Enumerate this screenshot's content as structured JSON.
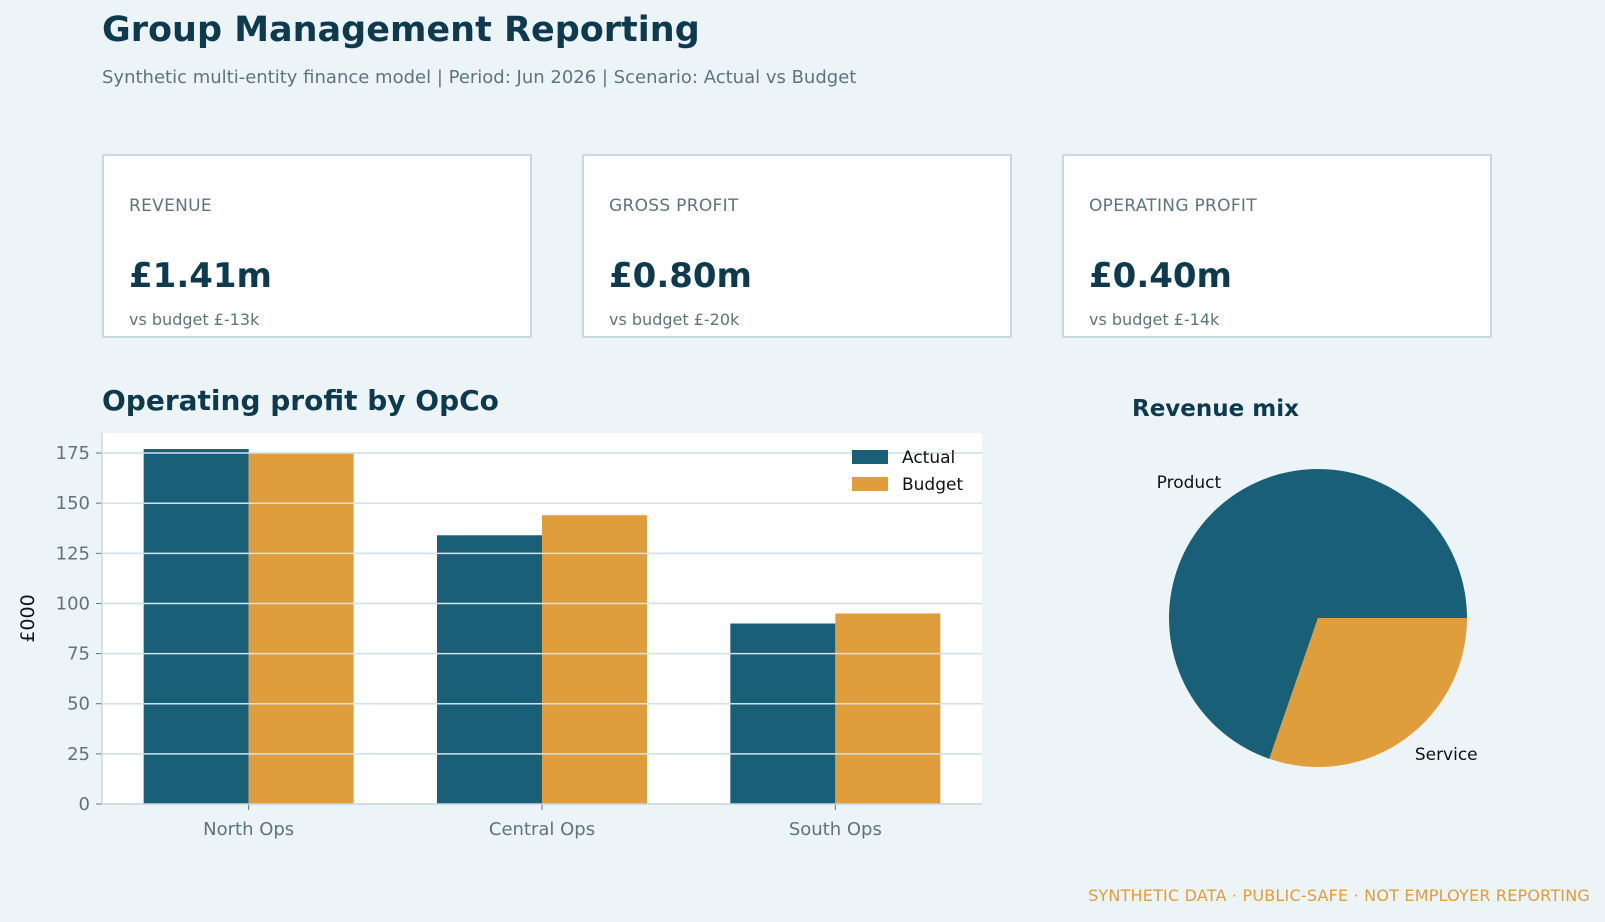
{
  "header": {
    "title": "Group Management Reporting",
    "subtitle": "Synthetic multi-entity finance model  |  Period: Jun 2026  |  Scenario: Actual vs Budget"
  },
  "kpis": [
    {
      "label": "REVENUE",
      "value": "£1.41m",
      "delta": "vs budget £-13k"
    },
    {
      "label": "GROSS PROFIT",
      "value": "£0.80m",
      "delta": "vs budget £-20k"
    },
    {
      "label": "OPERATING PROFIT",
      "value": "£0.40m",
      "delta": "vs budget £-14k"
    }
  ],
  "footer": "SYNTHETIC DATA · PUBLIC-SAFE · NOT EMPLOYER REPORTING",
  "colors": {
    "actual": "#1a5f78",
    "budget": "#e09d3b",
    "gridline": "#d3e2ea",
    "background": "#edf4f8"
  },
  "chart_data": [
    {
      "type": "bar",
      "title": "Operating profit by OpCo",
      "categories": [
        "North Ops",
        "Central Ops",
        "South Ops"
      ],
      "series": [
        {
          "name": "Actual",
          "values": [
            177,
            134,
            90
          ]
        },
        {
          "name": "Budget",
          "values": [
            175,
            144,
            95
          ]
        }
      ],
      "xlabel": "",
      "ylabel": "£000",
      "ylim": [
        0,
        185
      ],
      "yticks": [
        0,
        25,
        50,
        75,
        100,
        125,
        150,
        175
      ],
      "grid": true,
      "legend": "top-right"
    },
    {
      "type": "pie",
      "title": "Revenue mix",
      "slices": [
        {
          "label": "Product",
          "value": 69.7
        },
        {
          "label": "Service",
          "value": 30.3
        }
      ]
    }
  ]
}
